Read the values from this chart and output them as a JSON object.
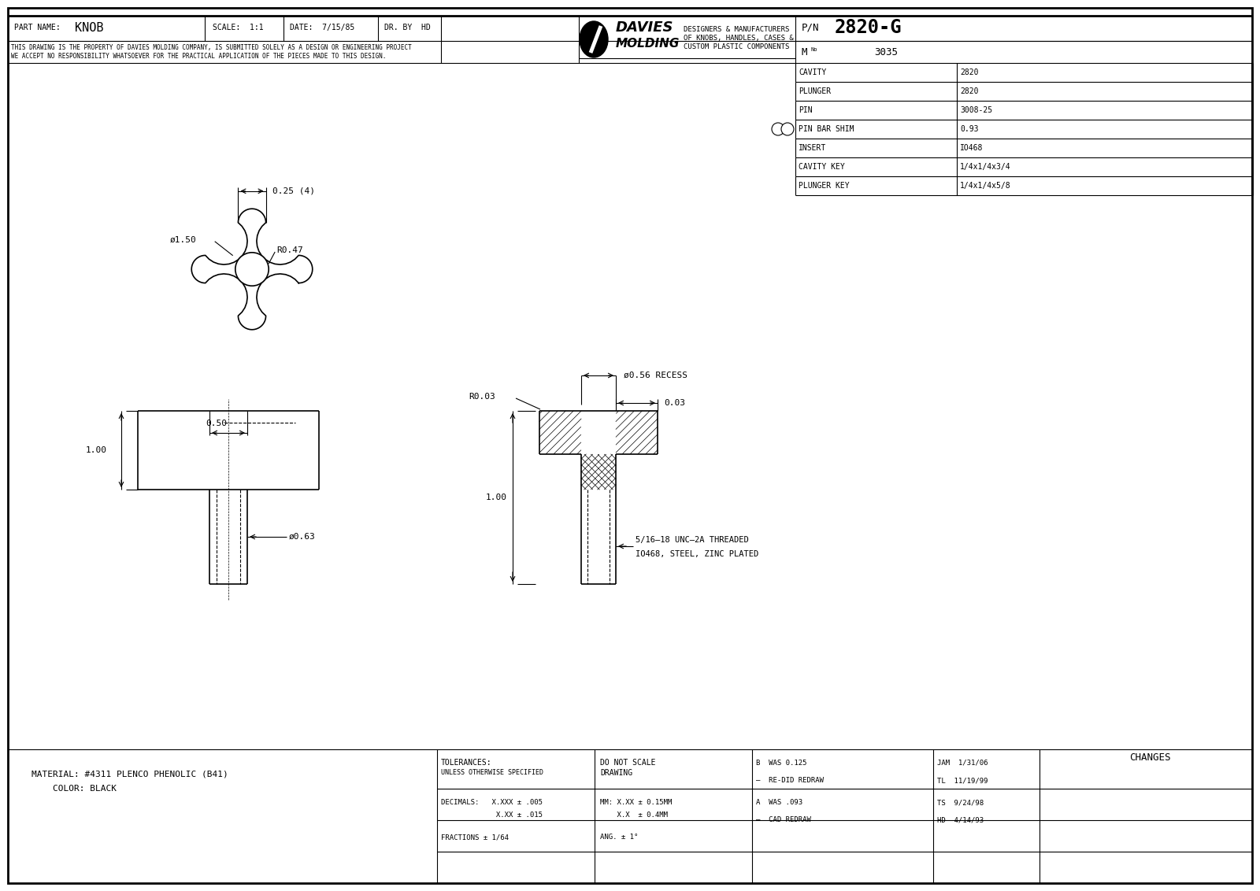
{
  "bg_color": "#ffffff",
  "line_color": "#000000",
  "title": "Davies Molding 2820-G Reference Drawing",
  "part_name": "KNOB",
  "scale": "1:1",
  "date": "7/15/85",
  "dr_by": "HD",
  "pn": "2820-G",
  "mno": "3035",
  "cavity": "2820",
  "plunger": "2820",
  "pin": "3008-25",
  "pin_bar_shim": "0.93",
  "insert": "IO468",
  "cavity_key": "1/4x1/4x3/4",
  "plunger_key": "1/4x1/4x5/8",
  "disclaimer_line1": "THIS DRAWING IS THE PROPERTY OF DAVIES MOLDING COMPANY, IS SUBMITTED SOLELY AS A DESIGN OR ENGINEERING PROJECT",
  "disclaimer_line2": "WE ACCEPT NO RESPONSIBILITY WHATSOEVER FOR THE PRACTICAL APPLICATION OF THE PIECES MADE TO THIS DESIGN.",
  "davies_text1": "DESIGNERS & MANUFACTURERS",
  "davies_text2": "OF KNOBS, HANDLES, CASES &",
  "davies_text3": "CUSTOM PLASTIC COMPONENTS",
  "material_line1": "MATERIAL: #4311 PLENCO PHENOLIC (B41)",
  "material_line2": "    COLOR: BLACK",
  "rev_entries_left": [
    "B  WAS 0.125",
    "–  RE-DID REDRAW",
    "A  WAS .093",
    "–  CAD REDRAW"
  ],
  "rev_entries_right": [
    "JAM  1/31/06",
    "TL  11/19/99",
    "TS  9/24/98",
    "HD  4/14/93"
  ]
}
